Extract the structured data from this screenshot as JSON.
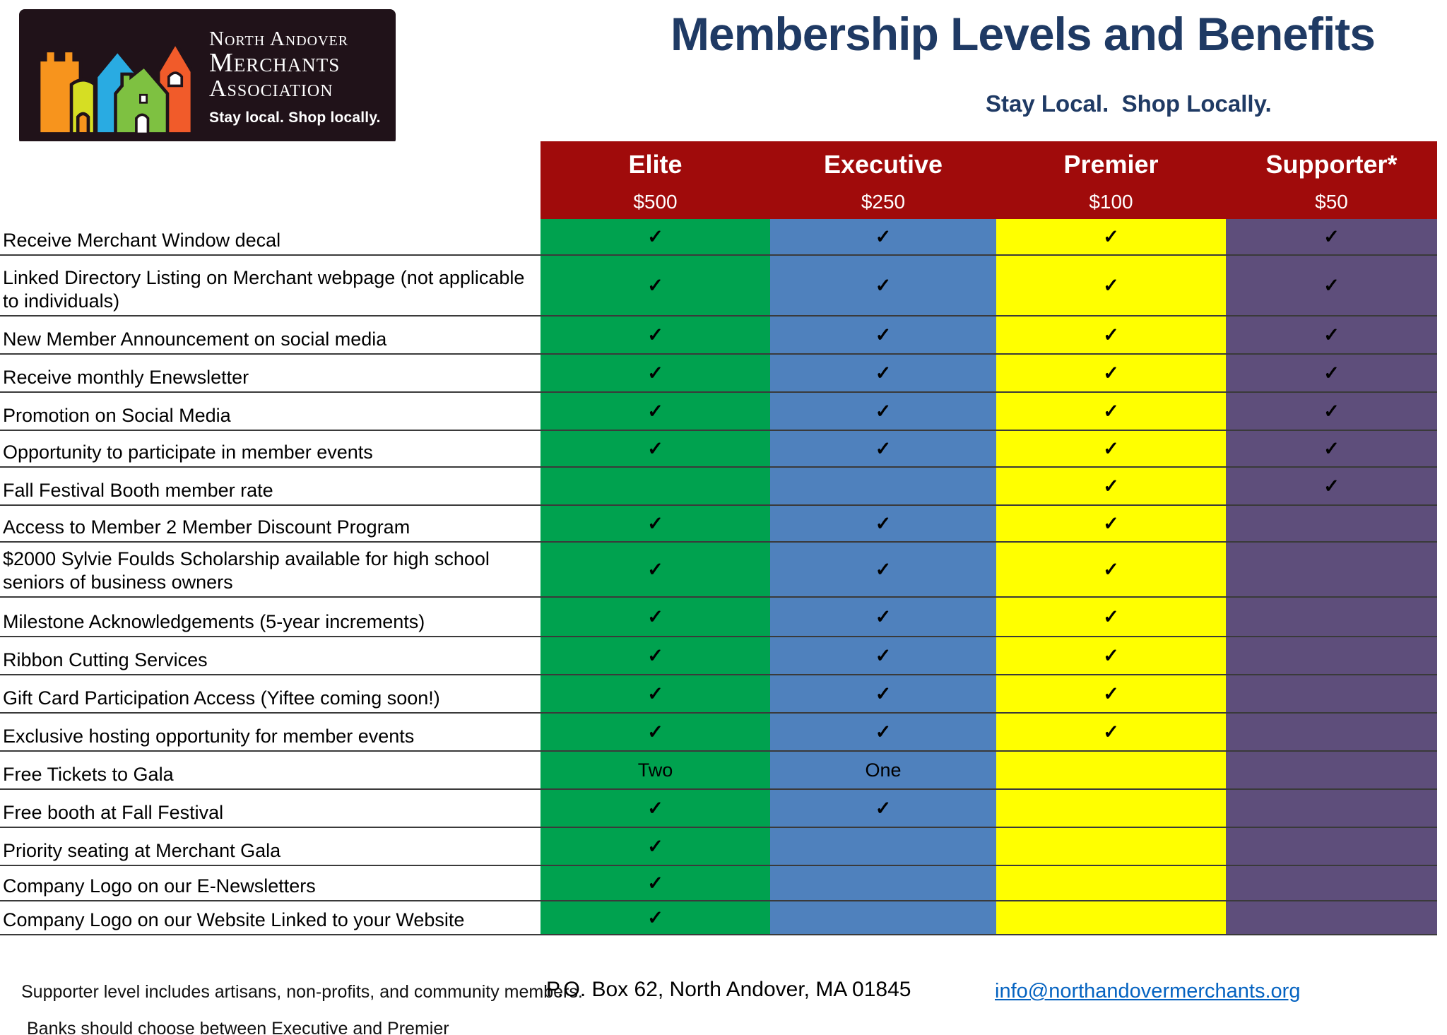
{
  "logo": {
    "line1": "North Andover",
    "line2": "Merchants",
    "line3": "Association",
    "tagline": "Stay local. Shop locally."
  },
  "header": {
    "title": "Membership Levels and Benefits",
    "subtitle": "Stay Local.  Shop Locally."
  },
  "colors": {
    "navy": "#1f3a64",
    "header_red": "#a00b0b",
    "link_blue": "#0563c1",
    "logo_background": "#201219"
  },
  "tiers": [
    {
      "name": "Elite",
      "price": "$500",
      "color": "#00a24f"
    },
    {
      "name": "Executive",
      "price": "$250",
      "color": "#4f81bd"
    },
    {
      "name": "Premier",
      "price": "$100",
      "color": "#ffff00"
    },
    {
      "name": "Supporter*",
      "price": "$50",
      "color": "#5e4e7b"
    }
  ],
  "table": {
    "check_symbol": "✓",
    "rows": [
      {
        "benefit": "Receive Merchant Window decal",
        "cells": [
          "check",
          "check",
          "check",
          "check"
        ]
      },
      {
        "benefit": "Linked Directory Listing on Merchant webpage (not applicable to individuals)",
        "cells": [
          "check",
          "check",
          "check",
          "check"
        ]
      },
      {
        "benefit": "New Member Announcement on social media",
        "cells": [
          "check",
          "check",
          "check",
          "check"
        ]
      },
      {
        "benefit": "Receive monthly Enewsletter",
        "cells": [
          "check",
          "check",
          "check",
          "check"
        ]
      },
      {
        "benefit": "Promotion on Social Media",
        "cells": [
          "check",
          "check",
          "check",
          "check"
        ]
      },
      {
        "benefit": "Opportunity to participate in member events",
        "cells": [
          "check",
          "check",
          "check",
          "check"
        ]
      },
      {
        "benefit": "Fall Festival Booth member rate",
        "cells": [
          "",
          "",
          "check",
          "check"
        ]
      },
      {
        "benefit": "Access to Member 2 Member Discount Program",
        "cells": [
          "check",
          "check",
          "check",
          ""
        ]
      },
      {
        "benefit": "$2000 Sylvie Foulds Scholarship available for high school seniors of business owners",
        "cells": [
          "check",
          "check",
          "check",
          ""
        ]
      },
      {
        "benefit": "Milestone Acknowledgements (5-year increments)",
        "cells": [
          "check",
          "check",
          "check",
          ""
        ]
      },
      {
        "benefit": "Ribbon Cutting Services",
        "cells": [
          "check",
          "check",
          "check",
          ""
        ]
      },
      {
        "benefit": "Gift Card Participation Access (Yiftee coming soon!)",
        "cells": [
          "check",
          "check",
          "check",
          ""
        ]
      },
      {
        "benefit": "Exclusive hosting opportunity for member events",
        "cells": [
          "check",
          "check",
          "check",
          ""
        ]
      },
      {
        "benefit": "Free Tickets to Gala",
        "cells": [
          "Two",
          "One",
          "",
          ""
        ]
      },
      {
        "benefit": "Free booth at Fall Festival",
        "cells": [
          "check",
          "check",
          "",
          ""
        ]
      },
      {
        "benefit": "Priority seating at Merchant Gala",
        "cells": [
          "check",
          "",
          "",
          ""
        ]
      },
      {
        "benefit": "Company Logo on our E-Newsletters",
        "cells": [
          "check",
          "",
          "",
          ""
        ]
      },
      {
        "benefit": "Company Logo on our Website Linked to your Website",
        "cells": [
          "check",
          "",
          "",
          ""
        ]
      }
    ]
  },
  "footer": {
    "note1": "Supporter level includes artisans, non-profits, and community members.",
    "address": "P.O. Box 62, North Andover, MA 01845",
    "email": "info@northandovermerchants.org",
    "note2": "Banks should choose between Executive and Premier"
  }
}
